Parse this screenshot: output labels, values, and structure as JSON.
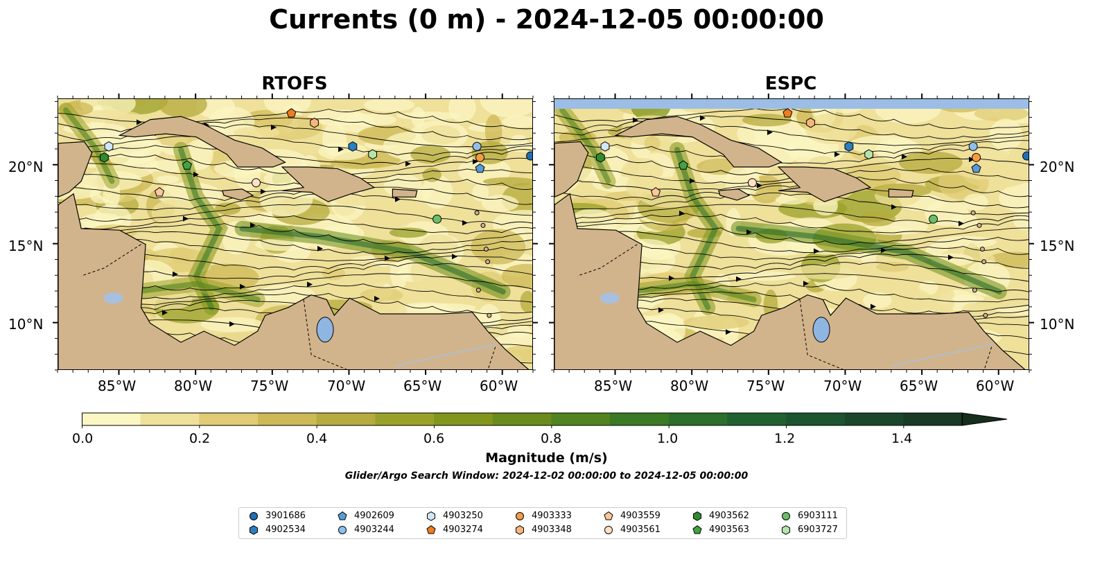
{
  "title": "Currents (0 m) - 2024-12-05 00:00:00",
  "panels": [
    {
      "title": "RTOFS"
    },
    {
      "title": "ESPC"
    }
  ],
  "axes": {
    "lon_ticks": [
      "85°W",
      "80°W",
      "75°W",
      "70°W",
      "65°W",
      "60°W"
    ],
    "lat_ticks": [
      "20°N",
      "15°N",
      "10°N"
    ],
    "lon_range": [
      -89,
      -58
    ],
    "lat_range": [
      7,
      24.2
    ]
  },
  "colorbar": {
    "label": "Magnitude (m/s)",
    "ticks": [
      "0.0",
      "0.2",
      "0.4",
      "0.6",
      "0.8",
      "1.0",
      "1.2",
      "1.4"
    ],
    "range": [
      0,
      1.5
    ],
    "extend": "max",
    "colors": [
      "#fbf6c2",
      "#efe09a",
      "#e0cc74",
      "#cdb956",
      "#b5ab3e",
      "#9aa12a",
      "#82961e",
      "#6a8c1c",
      "#518320",
      "#3b7a25",
      "#2c6e2b",
      "#216130",
      "#1c5430",
      "#1a472b",
      "#193a25",
      "#172d1e"
    ]
  },
  "subtitle": "Glider/Argo Search Window: 2024-12-02 00:00:00 to 2024-12-05 00:00:00",
  "colors": {
    "land": "#d2b48c",
    "lakes": "#8fb6e0",
    "ocean_mask": "#9bbde6",
    "rivers": "#a8c0e0"
  },
  "legend": [
    {
      "id": "3901686",
      "marker": "circle",
      "color": "#1f6fb4"
    },
    {
      "id": "4902534",
      "marker": "hexagon",
      "color": "#2a7fc0"
    },
    {
      "id": "4902609",
      "marker": "pentagon",
      "color": "#5a9bd5"
    },
    {
      "id": "4903244",
      "marker": "circle",
      "color": "#8fbfea"
    },
    {
      "id": "4903250",
      "marker": "hexagon",
      "color": "#cfe6f7"
    },
    {
      "id": "4903274",
      "marker": "pentagon",
      "color": "#f07d1c"
    },
    {
      "id": "4903333",
      "marker": "circle",
      "color": "#f39b45"
    },
    {
      "id": "4903348",
      "marker": "hexagon",
      "color": "#f8b57a"
    },
    {
      "id": "4903559",
      "marker": "pentagon",
      "color": "#f9c79b"
    },
    {
      "id": "4903561",
      "marker": "circle",
      "color": "#fde0c7"
    },
    {
      "id": "4903562",
      "marker": "hexagon",
      "color": "#2e8b2e"
    },
    {
      "id": "4903563",
      "marker": "pentagon",
      "color": "#41a341"
    },
    {
      "id": "6903111",
      "marker": "circle",
      "color": "#67c067"
    },
    {
      "id": "6903727",
      "marker": "hexagon",
      "color": "#b6e4a8"
    }
  ],
  "floats": [
    {
      "id": "3901686",
      "lon": -58.2,
      "lat": 20.6
    },
    {
      "id": "4902534",
      "lon": -69.8,
      "lat": 21.2
    },
    {
      "id": "4902609",
      "lon": -61.5,
      "lat": 19.8
    },
    {
      "id": "4903244",
      "lon": -61.7,
      "lat": 21.2
    },
    {
      "id": "4903250",
      "lon": -85.7,
      "lat": 21.2
    },
    {
      "id": "4903274",
      "lon": -73.8,
      "lat": 23.3
    },
    {
      "id": "4903333",
      "lon": -61.5,
      "lat": 20.5
    },
    {
      "id": "4903348",
      "lon": -72.3,
      "lat": 22.7
    },
    {
      "id": "4903559",
      "lon": -82.4,
      "lat": 18.3
    },
    {
      "id": "4903561",
      "lon": -76.1,
      "lat": 18.9
    },
    {
      "id": "4903562",
      "lon": -86.0,
      "lat": 20.5
    },
    {
      "id": "4903563",
      "lon": -80.6,
      "lat": 20.0
    },
    {
      "id": "6903111",
      "lon": -64.3,
      "lat": 16.6
    },
    {
      "id": "6903727",
      "lon": -68.5,
      "lat": 20.7
    }
  ]
}
